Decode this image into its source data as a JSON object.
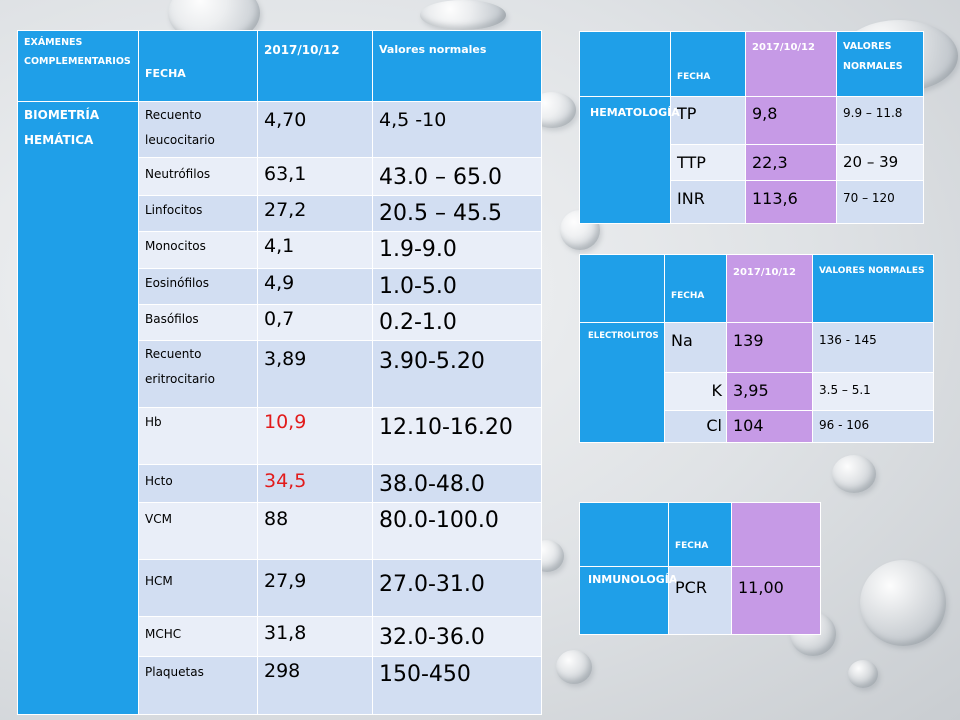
{
  "main_table": {
    "header": {
      "examenes": "EXÁMENES COMPLEMENTARIOS",
      "fecha": "FECHA",
      "date": "2017/10/12",
      "normal": "Valores normales"
    },
    "section_label": "BIOMETRÍA HEMÁTICA",
    "rows": [
      {
        "test": "Recuento leucocitario",
        "value": "4,70",
        "normal": "4,5 -10",
        "abnormal": false
      },
      {
        "test": "Neutrófilos",
        "value": "63,1",
        "normal": "43.0 – 65.0",
        "abnormal": false
      },
      {
        "test": "Linfocitos",
        "value": "27,2",
        "normal": "20.5 – 45.5",
        "abnormal": false
      },
      {
        "test": "Monocitos",
        "value": "4,1",
        "normal": "1.9-9.0",
        "abnormal": false
      },
      {
        "test": "Eosinófilos",
        "value": "4,9",
        "normal": "1.0-5.0",
        "abnormal": false
      },
      {
        "test": "Basófilos",
        "value": "0,7",
        "normal": "0.2-1.0",
        "abnormal": false
      },
      {
        "test": "Recuento eritrocitario",
        "value": "3,89",
        "normal": "3.90-5.20",
        "abnormal": false
      },
      {
        "test": "Hb",
        "value": "10,9",
        "normal": "12.10-16.20",
        "abnormal": true
      },
      {
        "test": "Hcto",
        "value": "34,5",
        "normal": "38.0-48.0",
        "abnormal": true
      },
      {
        "test": "VCM",
        "value": "88",
        "normal": "80.0-100.0",
        "abnormal": false
      },
      {
        "test": "HCM",
        "value": "27,9",
        "normal": "27.0-31.0",
        "abnormal": false
      },
      {
        "test": "MCHC",
        "value": "31,8",
        "normal": "32.0-36.0",
        "abnormal": false
      },
      {
        "test": "Plaquetas",
        "value": "298",
        "normal": "150-450",
        "abnormal": false
      }
    ]
  },
  "hemato_table": {
    "header": {
      "fecha": "FECHA",
      "date": "2017/10/12",
      "normal": "VALORES NORMALES"
    },
    "section_label": "HEMATOLOGÍA",
    "rows": [
      {
        "test": "TP",
        "value": "9,8",
        "normal": "9.9 – 11.8"
      },
      {
        "test": "TTP",
        "value": "22,3",
        "normal": "20 – 39"
      },
      {
        "test": "INR",
        "value": "113,6",
        "normal": "70 – 120"
      }
    ]
  },
  "electro_table": {
    "header": {
      "fecha": "FECHA",
      "date": "2017/10/12",
      "normal": "VALORES NORMALES"
    },
    "section_label": "ELECTROLITOS",
    "rows": [
      {
        "test": "Na",
        "value": "139",
        "normal": "136 - 145"
      },
      {
        "test": "K",
        "value": "3,95",
        "normal": "3.5 – 5.1"
      },
      {
        "test": "Cl",
        "value": "104",
        "normal": "96 - 106"
      }
    ]
  },
  "inmuno_table": {
    "header": {
      "fecha": "FECHA"
    },
    "section_label": "INMUNOLOGÍA",
    "rows": [
      {
        "test": "PCR",
        "value": "11,00"
      }
    ]
  },
  "colors": {
    "header_blue": "#1f9fe8",
    "row_light": "#d2def2",
    "row_lighter": "#e9eef8",
    "purple": "#c69ae6",
    "abnormal_red": "#e21b1b"
  }
}
